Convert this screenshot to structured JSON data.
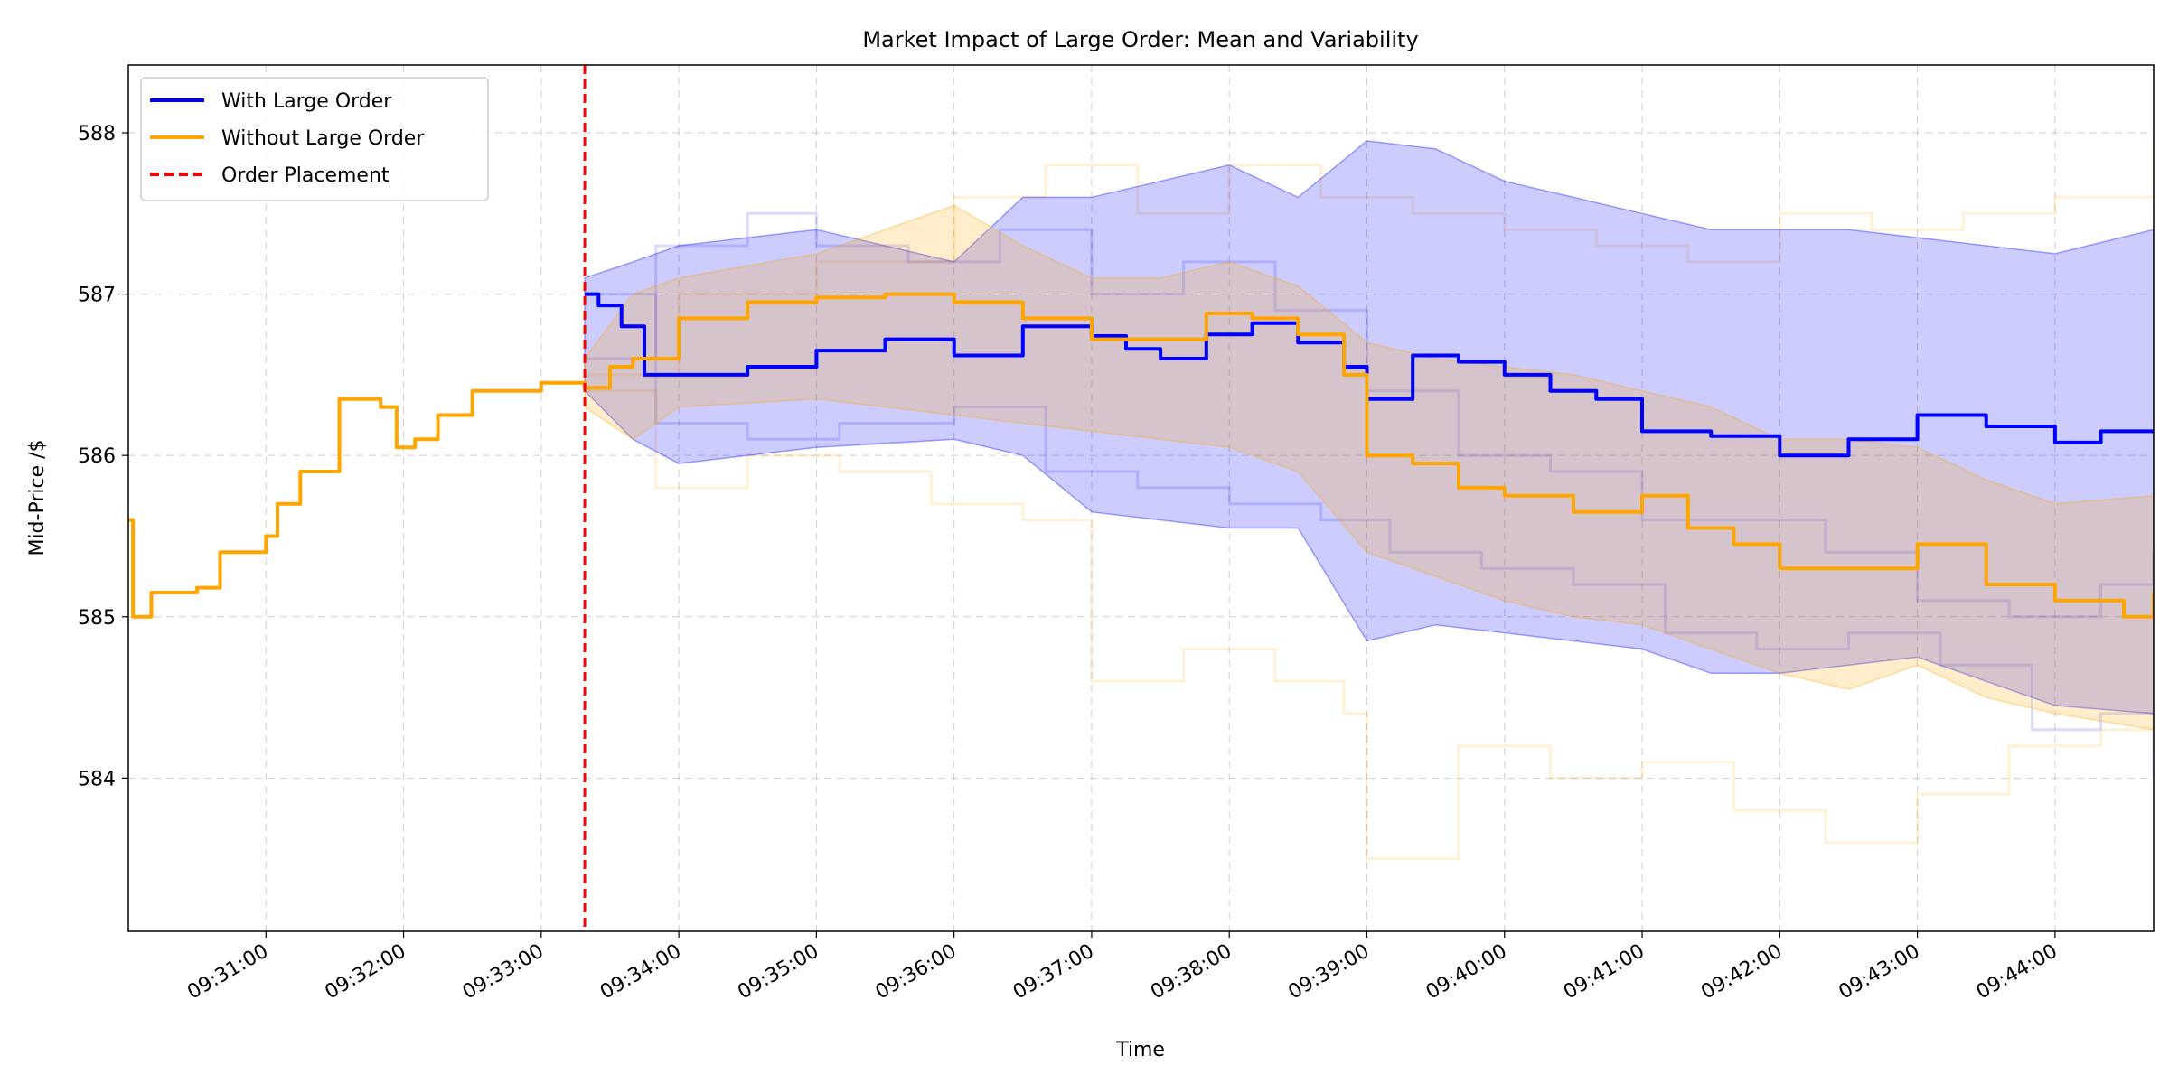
{
  "chart_data": {
    "type": "line",
    "title": "Market Impact of Large Order: Mean and Variability",
    "xlabel": "Time",
    "ylabel": "Mid-Price /$",
    "x_range": [
      "09:30:00",
      "09:44:43"
    ],
    "ylim": [
      583.05,
      588.42
    ],
    "x_ticks": [
      "09:31:00",
      "09:32:00",
      "09:33:00",
      "09:34:00",
      "09:35:00",
      "09:36:00",
      "09:37:00",
      "09:38:00",
      "09:39:00",
      "09:40:00",
      "09:41:00",
      "09:42:00",
      "09:43:00",
      "09:44:00"
    ],
    "y_ticks": [
      584,
      585,
      586,
      587,
      588
    ],
    "grid": true,
    "legend_position": "upper-left",
    "order_placement_time": "09:33:19",
    "series": [
      {
        "name": "With Large Order",
        "color": "#0000ff",
        "points": [
          [
            "09:33:19",
            587.0
          ],
          [
            "09:33:25",
            586.93
          ],
          [
            "09:33:35",
            586.8
          ],
          [
            "09:33:45",
            586.5
          ],
          [
            "09:34:00",
            586.5
          ],
          [
            "09:34:30",
            586.55
          ],
          [
            "09:35:00",
            586.65
          ],
          [
            "09:35:30",
            586.72
          ],
          [
            "09:36:00",
            586.62
          ],
          [
            "09:36:30",
            586.8
          ],
          [
            "09:37:00",
            586.74
          ],
          [
            "09:37:15",
            586.66
          ],
          [
            "09:37:30",
            586.6
          ],
          [
            "09:37:50",
            586.75
          ],
          [
            "09:38:10",
            586.82
          ],
          [
            "09:38:30",
            586.7
          ],
          [
            "09:38:50",
            586.55
          ],
          [
            "09:39:00",
            586.35
          ],
          [
            "09:39:20",
            586.62
          ],
          [
            "09:39:40",
            586.58
          ],
          [
            "09:40:00",
            586.5
          ],
          [
            "09:40:20",
            586.4
          ],
          [
            "09:40:40",
            586.35
          ],
          [
            "09:41:00",
            586.15
          ],
          [
            "09:41:30",
            586.12
          ],
          [
            "09:42:00",
            586.0
          ],
          [
            "09:42:30",
            586.1
          ],
          [
            "09:43:00",
            586.25
          ],
          [
            "09:43:30",
            586.18
          ],
          [
            "09:44:00",
            586.08
          ],
          [
            "09:44:20",
            586.15
          ],
          [
            "09:44:43",
            586.15
          ]
        ]
      },
      {
        "name": "Without Large Order",
        "color": "#ffa500",
        "points": [
          [
            "09:30:00",
            585.6
          ],
          [
            "09:30:02",
            585.0
          ],
          [
            "09:30:10",
            585.15
          ],
          [
            "09:30:30",
            585.18
          ],
          [
            "09:30:40",
            585.4
          ],
          [
            "09:31:00",
            585.5
          ],
          [
            "09:31:05",
            585.7
          ],
          [
            "09:31:15",
            585.9
          ],
          [
            "09:31:30",
            585.9
          ],
          [
            "09:31:32",
            586.35
          ],
          [
            "09:31:50",
            586.3
          ],
          [
            "09:31:57",
            586.05
          ],
          [
            "09:32:05",
            586.1
          ],
          [
            "09:32:15",
            586.25
          ],
          [
            "09:32:30",
            586.4
          ],
          [
            "09:33:00",
            586.45
          ],
          [
            "09:33:19",
            586.42
          ],
          [
            "09:33:30",
            586.55
          ],
          [
            "09:33:40",
            586.6
          ],
          [
            "09:34:00",
            586.85
          ],
          [
            "09:34:30",
            586.95
          ],
          [
            "09:35:00",
            586.98
          ],
          [
            "09:35:30",
            587.0
          ],
          [
            "09:36:00",
            586.95
          ],
          [
            "09:36:30",
            586.85
          ],
          [
            "09:37:00",
            586.72
          ],
          [
            "09:37:30",
            586.72
          ],
          [
            "09:37:50",
            586.88
          ],
          [
            "09:38:10",
            586.85
          ],
          [
            "09:38:30",
            586.75
          ],
          [
            "09:38:50",
            586.5
          ],
          [
            "09:39:00",
            586.0
          ],
          [
            "09:39:20",
            585.95
          ],
          [
            "09:39:40",
            585.8
          ],
          [
            "09:40:00",
            585.75
          ],
          [
            "09:40:30",
            585.65
          ],
          [
            "09:41:00",
            585.75
          ],
          [
            "09:41:20",
            585.55
          ],
          [
            "09:41:40",
            585.45
          ],
          [
            "09:42:00",
            585.3
          ],
          [
            "09:42:30",
            585.3
          ],
          [
            "09:43:00",
            585.45
          ],
          [
            "09:43:30",
            585.2
          ],
          [
            "09:44:00",
            585.1
          ],
          [
            "09:44:30",
            585.0
          ],
          [
            "09:44:43",
            585.15
          ]
        ]
      }
    ],
    "bands": [
      {
        "series": "With Large Order",
        "color": "#0000ff",
        "upper": [
          [
            "09:33:19",
            587.1
          ],
          [
            "09:33:40",
            587.2
          ],
          [
            "09:34:00",
            587.3
          ],
          [
            "09:35:00",
            587.4
          ],
          [
            "09:36:00",
            587.2
          ],
          [
            "09:36:30",
            587.6
          ],
          [
            "09:37:00",
            587.6
          ],
          [
            "09:38:00",
            587.8
          ],
          [
            "09:38:30",
            587.6
          ],
          [
            "09:39:00",
            587.95
          ],
          [
            "09:39:30",
            587.9
          ],
          [
            "09:40:00",
            587.7
          ],
          [
            "09:40:30",
            587.6
          ],
          [
            "09:41:00",
            587.5
          ],
          [
            "09:41:30",
            587.4
          ],
          [
            "09:42:00",
            587.4
          ],
          [
            "09:42:30",
            587.4
          ],
          [
            "09:43:00",
            587.35
          ],
          [
            "09:43:30",
            587.3
          ],
          [
            "09:44:00",
            587.25
          ],
          [
            "09:44:43",
            587.4
          ]
        ],
        "lower": [
          [
            "09:33:19",
            586.4
          ],
          [
            "09:33:40",
            586.1
          ],
          [
            "09:34:00",
            585.95
          ],
          [
            "09:35:00",
            586.05
          ],
          [
            "09:36:00",
            586.1
          ],
          [
            "09:36:30",
            586.0
          ],
          [
            "09:37:00",
            585.65
          ],
          [
            "09:38:00",
            585.55
          ],
          [
            "09:38:30",
            585.55
          ],
          [
            "09:39:00",
            584.85
          ],
          [
            "09:39:30",
            584.95
          ],
          [
            "09:40:00",
            584.9
          ],
          [
            "09:40:30",
            584.85
          ],
          [
            "09:41:00",
            584.8
          ],
          [
            "09:41:30",
            584.65
          ],
          [
            "09:42:00",
            584.65
          ],
          [
            "09:42:30",
            584.7
          ],
          [
            "09:43:00",
            584.75
          ],
          [
            "09:43:30",
            584.6
          ],
          [
            "09:44:00",
            584.45
          ],
          [
            "09:44:43",
            584.4
          ]
        ]
      },
      {
        "series": "Without Large Order",
        "color": "#ffa500",
        "upper": [
          [
            "09:33:19",
            586.6
          ],
          [
            "09:33:40",
            587.0
          ],
          [
            "09:34:00",
            587.1
          ],
          [
            "09:35:00",
            587.25
          ],
          [
            "09:36:00",
            587.55
          ],
          [
            "09:36:30",
            587.3
          ],
          [
            "09:37:00",
            587.1
          ],
          [
            "09:37:30",
            587.1
          ],
          [
            "09:38:00",
            587.2
          ],
          [
            "09:38:30",
            587.05
          ],
          [
            "09:39:00",
            586.7
          ],
          [
            "09:39:30",
            586.6
          ],
          [
            "09:40:00",
            586.55
          ],
          [
            "09:40:30",
            586.5
          ],
          [
            "09:41:00",
            586.4
          ],
          [
            "09:41:30",
            586.3
          ],
          [
            "09:42:00",
            586.1
          ],
          [
            "09:42:30",
            586.1
          ],
          [
            "09:43:00",
            586.05
          ],
          [
            "09:43:30",
            585.85
          ],
          [
            "09:44:00",
            585.7
          ],
          [
            "09:44:43",
            585.75
          ]
        ],
        "lower": [
          [
            "09:33:19",
            586.3
          ],
          [
            "09:33:40",
            586.1
          ],
          [
            "09:34:00",
            586.3
          ],
          [
            "09:35:00",
            586.35
          ],
          [
            "09:36:00",
            586.25
          ],
          [
            "09:36:30",
            586.2
          ],
          [
            "09:37:00",
            586.15
          ],
          [
            "09:37:30",
            586.1
          ],
          [
            "09:38:00",
            586.05
          ],
          [
            "09:38:30",
            585.9
          ],
          [
            "09:39:00",
            585.4
          ],
          [
            "09:39:30",
            585.25
          ],
          [
            "09:40:00",
            585.1
          ],
          [
            "09:40:30",
            585.0
          ],
          [
            "09:41:00",
            584.95
          ],
          [
            "09:41:30",
            584.8
          ],
          [
            "09:42:00",
            584.65
          ],
          [
            "09:42:30",
            584.55
          ],
          [
            "09:43:00",
            584.7
          ],
          [
            "09:43:30",
            584.5
          ],
          [
            "09:44:00",
            584.4
          ],
          [
            "09:44:43",
            584.3
          ]
        ]
      }
    ],
    "faint_paths": [
      {
        "series": "With Large Order",
        "color": "#0000ff",
        "points": [
          [
            "09:33:19",
            586.6
          ],
          [
            "09:33:50",
            587.3
          ],
          [
            "09:34:30",
            587.5
          ],
          [
            "09:35:00",
            587.3
          ],
          [
            "09:35:40",
            587.2
          ],
          [
            "09:36:20",
            587.4
          ],
          [
            "09:37:00",
            587.0
          ],
          [
            "09:37:40",
            587.2
          ],
          [
            "09:38:20",
            586.9
          ],
          [
            "09:39:00",
            586.4
          ],
          [
            "09:39:40",
            586.0
          ],
          [
            "09:40:20",
            585.9
          ],
          [
            "09:41:00",
            585.6
          ],
          [
            "09:41:40",
            585.6
          ],
          [
            "09:42:20",
            585.4
          ],
          [
            "09:43:00",
            585.1
          ],
          [
            "09:43:40",
            585.0
          ],
          [
            "09:44:20",
            585.2
          ],
          [
            "09:44:43",
            585.4
          ]
        ]
      },
      {
        "series": "With Large Order",
        "color": "#0000ff",
        "points": [
          [
            "09:33:19",
            587.0
          ],
          [
            "09:33:50",
            586.2
          ],
          [
            "09:34:30",
            586.1
          ],
          [
            "09:35:10",
            586.2
          ],
          [
            "09:36:00",
            586.3
          ],
          [
            "09:36:40",
            585.9
          ],
          [
            "09:37:20",
            585.8
          ],
          [
            "09:38:00",
            585.7
          ],
          [
            "09:38:40",
            585.6
          ],
          [
            "09:39:10",
            585.4
          ],
          [
            "09:39:50",
            585.3
          ],
          [
            "09:40:30",
            585.2
          ],
          [
            "09:41:10",
            584.9
          ],
          [
            "09:41:50",
            584.8
          ],
          [
            "09:42:30",
            584.9
          ],
          [
            "09:43:10",
            584.7
          ],
          [
            "09:43:50",
            584.3
          ],
          [
            "09:44:20",
            584.4
          ],
          [
            "09:44:43",
            584.0
          ]
        ]
      },
      {
        "series": "Without Large Order",
        "color": "#ffa500",
        "points": [
          [
            "09:33:19",
            586.4
          ],
          [
            "09:33:50",
            585.8
          ],
          [
            "09:34:30",
            586.0
          ],
          [
            "09:35:10",
            585.9
          ],
          [
            "09:35:50",
            585.7
          ],
          [
            "09:36:30",
            585.6
          ],
          [
            "09:37:00",
            584.6
          ],
          [
            "09:37:40",
            584.8
          ],
          [
            "09:38:20",
            584.6
          ],
          [
            "09:38:50",
            584.4
          ],
          [
            "09:39:00",
            583.5
          ],
          [
            "09:39:40",
            584.2
          ],
          [
            "09:40:20",
            584.0
          ],
          [
            "09:41:00",
            584.1
          ],
          [
            "09:41:40",
            583.8
          ],
          [
            "09:42:20",
            583.6
          ],
          [
            "09:43:00",
            583.9
          ],
          [
            "09:43:40",
            584.2
          ],
          [
            "09:44:20",
            584.3
          ],
          [
            "09:44:43",
            584.2
          ]
        ]
      },
      {
        "series": "Without Large Order",
        "color": "#ffa500",
        "points": [
          [
            "09:33:19",
            586.5
          ],
          [
            "09:34:00",
            587.0
          ],
          [
            "09:35:00",
            587.2
          ],
          [
            "09:36:00",
            587.6
          ],
          [
            "09:36:40",
            587.8
          ],
          [
            "09:37:20",
            587.5
          ],
          [
            "09:38:00",
            587.8
          ],
          [
            "09:38:40",
            587.6
          ],
          [
            "09:39:20",
            587.5
          ],
          [
            "09:40:00",
            587.4
          ],
          [
            "09:40:40",
            587.3
          ],
          [
            "09:41:20",
            587.2
          ],
          [
            "09:42:00",
            587.5
          ],
          [
            "09:42:40",
            587.4
          ],
          [
            "09:43:20",
            587.5
          ],
          [
            "09:44:00",
            587.6
          ],
          [
            "09:44:43",
            588.0
          ]
        ]
      }
    ],
    "legend": [
      {
        "label": "With Large Order",
        "color": "#0000ff",
        "style": "solid"
      },
      {
        "label": "Without Large Order",
        "color": "#ffa500",
        "style": "solid"
      },
      {
        "label": "Order Placement",
        "color": "#ff0000",
        "style": "dashed"
      }
    ]
  }
}
